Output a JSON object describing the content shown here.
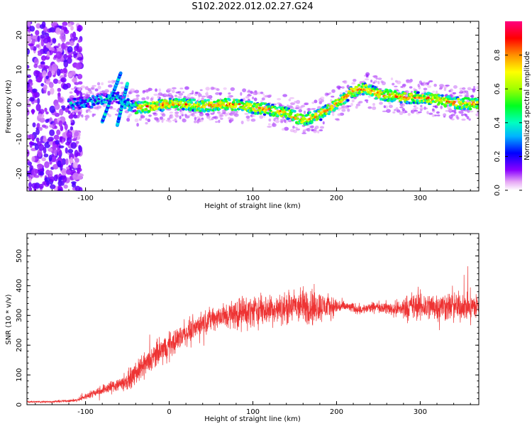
{
  "title": "S102.2022.012.02.27.G24",
  "chart_data": [
    {
      "type": "heatmap",
      "xlabel": "Height of straight line (km)",
      "ylabel": "Frequency (Hz)",
      "xlim": [
        -170,
        370
      ],
      "ylim": [
        -25,
        24
      ],
      "xticks": [
        -100,
        0,
        100,
        200,
        300
      ],
      "yticks": [
        -20,
        -10,
        0,
        10,
        20
      ],
      "colorbar": {
        "label": "Normalized spectral amplitude",
        "range": [
          0,
          1
        ],
        "ticks": [
          0.0,
          0.2,
          0.4,
          0.6,
          0.8
        ],
        "tick_labels": [
          "0.0",
          "0.2",
          "0.4",
          "0.6",
          "0.8"
        ]
      },
      "ridge": {
        "name": "",
        "x": [
          -120,
          -100,
          -80,
          -60,
          -50,
          -40,
          -20,
          0,
          20,
          40,
          60,
          80,
          100,
          120,
          140,
          160,
          180,
          200,
          220,
          235,
          250,
          280,
          300,
          320,
          340,
          370
        ],
        "y": [
          0,
          0.5,
          1.5,
          2,
          0,
          -1,
          -0.5,
          0,
          0,
          -0.5,
          0,
          0,
          -1,
          -1.5,
          -2.5,
          -4.5,
          -3,
          0,
          4,
          4.5,
          3,
          2,
          2,
          1.5,
          0.5,
          0
        ]
      }
    },
    {
      "type": "line",
      "xlabel": "Height of straight line (km)",
      "ylabel": "SNR (10 * v/v)",
      "xlim": [
        -170,
        370
      ],
      "ylim": [
        0,
        575
      ],
      "xticks": [
        -100,
        0,
        100,
        200,
        300
      ],
      "yticks": [
        0,
        100,
        200,
        300,
        400,
        500
      ],
      "series": [
        {
          "name": "",
          "color": "#ee3333",
          "trend_x": [
            -170,
            -140,
            -110,
            -90,
            -70,
            -50,
            -30,
            -10,
            10,
            30,
            50,
            70,
            90,
            110,
            130,
            150,
            170,
            190,
            210,
            230,
            250,
            270,
            290,
            310,
            330,
            350,
            370
          ],
          "trend_y": [
            10,
            10,
            15,
            40,
            60,
            80,
            130,
            180,
            220,
            260,
            290,
            300,
            310,
            320,
            320,
            330,
            330,
            330,
            330,
            320,
            330,
            320,
            330,
            330,
            330,
            330,
            330
          ],
          "noise_amp_y": [
            5,
            5,
            8,
            20,
            30,
            45,
            60,
            70,
            60,
            55,
            55,
            70,
            80,
            80,
            70,
            85,
            95,
            60,
            25,
            25,
            25,
            40,
            70,
            70,
            70,
            70,
            70
          ]
        }
      ]
    }
  ]
}
